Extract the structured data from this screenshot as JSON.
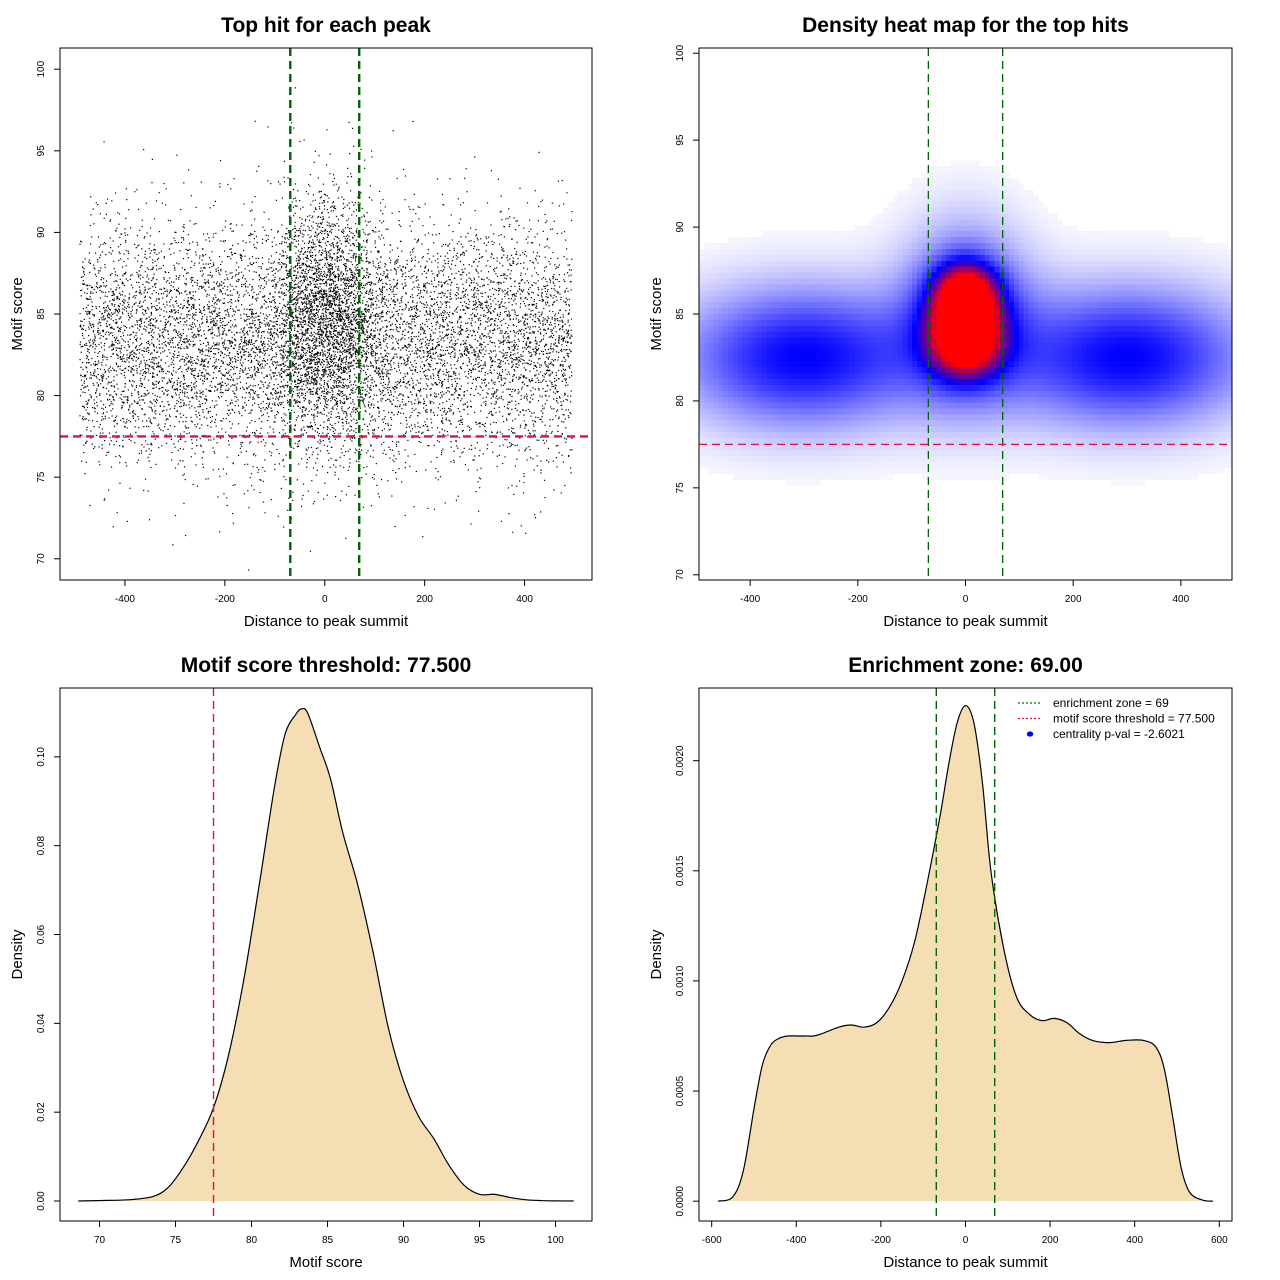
{
  "chart_data": [
    {
      "id": "scatter",
      "type": "scatter",
      "title": "Top hit for each peak",
      "xlabel": "Distance to peak summit",
      "ylabel": "Motif score",
      "xlim": [
        -530,
        535
      ],
      "ylim": [
        68.7,
        101.3
      ],
      "xticks": [
        -400,
        -200,
        0,
        200,
        400
      ],
      "yticks": [
        70,
        75,
        80,
        85,
        90,
        95,
        100
      ],
      "point_color": "#000000",
      "point_count_approx": 11000,
      "cluster": {
        "background": {
          "x_range": [
            -490,
            495
          ],
          "score_mean": 83.2,
          "score_sd": 3.6
        },
        "central": {
          "x_mean": 5,
          "x_sd": 55,
          "score_mean": 85.0,
          "score_sd": 3.6
        }
      },
      "vlines": [
        {
          "x": -69,
          "color": "#006400",
          "style": "dashed"
        },
        {
          "x": 69,
          "color": "#006400",
          "style": "dashed"
        }
      ],
      "hlines": [
        {
          "y": 77.5,
          "color": "#dc143c",
          "style": "dashed"
        }
      ]
    },
    {
      "id": "heatmap",
      "type": "heatmap",
      "title": "Density heat map for the top hits",
      "xlabel": "Distance to peak summit",
      "ylabel": "Motif score",
      "xlim": [
        -495,
        495
      ],
      "ylim": [
        69.7,
        100.3
      ],
      "xticks": [
        -400,
        -200,
        0,
        200,
        400
      ],
      "yticks": [
        70,
        75,
        80,
        85,
        90,
        95,
        100
      ],
      "colors": [
        "#ffffff",
        "#0000ff",
        "#ff0000"
      ],
      "density_components": [
        {
          "x_center": -300,
          "x_sd": 160,
          "y_center": 82.5,
          "y_sd": 2.8,
          "weight": 0.55
        },
        {
          "x_center": 300,
          "x_sd": 160,
          "y_center": 82.5,
          "y_sd": 2.8,
          "weight": 0.55
        },
        {
          "x_center": 0,
          "x_sd": 45,
          "y_center": 83.5,
          "y_sd": 1.4,
          "weight": 0.85
        },
        {
          "x_center": 0,
          "x_sd": 40,
          "y_center": 86.0,
          "y_sd": 1.3,
          "weight": 0.9
        },
        {
          "x_center": 0,
          "x_sd": 80,
          "y_center": 85.0,
          "y_sd": 3.5,
          "weight": 0.45
        }
      ],
      "vlines": [
        {
          "x": -69,
          "color": "#006400",
          "style": "dashed"
        },
        {
          "x": 69,
          "color": "#006400",
          "style": "dashed"
        }
      ],
      "hlines": [
        {
          "y": 77.5,
          "color": "#dc143c",
          "style": "dashed"
        }
      ]
    },
    {
      "id": "score_density",
      "type": "area",
      "title": "Motif score threshold: 77.500",
      "xlabel": "Motif score",
      "ylabel": "Density",
      "xlim": [
        67.4,
        102.4
      ],
      "ylim": [
        -0.0045,
        0.1155
      ],
      "xticks": [
        70,
        75,
        80,
        85,
        90,
        95,
        100
      ],
      "yticks": [
        0.0,
        0.02,
        0.04,
        0.06,
        0.08,
        0.1
      ],
      "ytick_labels": [
        "0.00",
        "0.02",
        "0.04",
        "0.06",
        "0.08",
        "0.10"
      ],
      "fill_color": "#f5deb3",
      "x": [
        68.6,
        70,
        72,
        73.5,
        74.5,
        75.5,
        76.5,
        77.5,
        78.5,
        79.5,
        80.5,
        81.5,
        82.2,
        82.9,
        83.3,
        83.7,
        84.5,
        85.2,
        86,
        87,
        88,
        89,
        90,
        91,
        92,
        93,
        94,
        95,
        96,
        97,
        98,
        99,
        100,
        101.2
      ],
      "values": [
        0.0,
        0.0001,
        0.0003,
        0.001,
        0.003,
        0.0075,
        0.0135,
        0.021,
        0.033,
        0.05,
        0.071,
        0.093,
        0.105,
        0.1095,
        0.1108,
        0.1098,
        0.102,
        0.095,
        0.083,
        0.071,
        0.056,
        0.039,
        0.027,
        0.019,
        0.014,
        0.008,
        0.0035,
        0.0015,
        0.0015,
        0.0008,
        0.0003,
        0.0001,
        3e-05,
        0.0
      ],
      "vlines": [
        {
          "x": 77.5,
          "color": "#dc143c",
          "style": "dashed"
        }
      ]
    },
    {
      "id": "distance_density",
      "type": "area",
      "title": "Enrichment zone: 69.00",
      "xlabel": "Distance to peak summit",
      "ylabel": "Density",
      "xlim": [
        -630,
        630
      ],
      "ylim": [
        -9e-05,
        0.00233
      ],
      "xticks": [
        -600,
        -400,
        -200,
        0,
        200,
        400,
        600
      ],
      "yticks": [
        0.0,
        0.0005,
        0.001,
        0.0015,
        0.002
      ],
      "ytick_labels": [
        "0.0000",
        "0.0005",
        "0.0010",
        "0.0015",
        "0.0020"
      ],
      "fill_color": "#f5deb3",
      "x": [
        -585,
        -550,
        -525,
        -500,
        -480,
        -460,
        -440,
        -420,
        -400,
        -380,
        -360,
        -340,
        -300,
        -270,
        -240,
        -210,
        -180,
        -150,
        -120,
        -90,
        -60,
        -40,
        -20,
        0,
        20,
        40,
        60,
        90,
        120,
        150,
        180,
        210,
        240,
        270,
        300,
        340,
        380,
        420,
        450,
        470,
        490,
        510,
        530,
        560,
        585
      ],
      "values": [
        0.0,
        2e-05,
        0.00014,
        0.00042,
        0.00062,
        0.00071,
        0.00074,
        0.00075,
        0.00075,
        0.00075,
        0.00075,
        0.00076,
        0.00079,
        0.0008,
        0.00079,
        0.00081,
        0.00088,
        0.001,
        0.00118,
        0.00145,
        0.00175,
        0.00198,
        0.00217,
        0.00225,
        0.00217,
        0.0019,
        0.0015,
        0.00115,
        0.00093,
        0.00085,
        0.00082,
        0.00083,
        0.00081,
        0.00076,
        0.00073,
        0.00072,
        0.00073,
        0.00073,
        0.0007,
        0.0006,
        0.00038,
        0.00015,
        4e-05,
        5e-06,
        0.0
      ],
      "vlines": [
        {
          "x": -69,
          "color": "#006400",
          "style": "dashed"
        },
        {
          "x": 69,
          "color": "#006400",
          "style": "dashed"
        }
      ],
      "legend": {
        "position": "top-right",
        "entries": [
          {
            "label": "enrichment zone = 69",
            "color": "#006400",
            "symbol": "dotted-line"
          },
          {
            "label": "motif score threshold = 77.500",
            "color": "#dc143c",
            "symbol": "dotted-line"
          },
          {
            "label": "centrality p-val = -2.6021",
            "color": "#0000ff",
            "symbol": "dot"
          }
        ]
      }
    }
  ]
}
